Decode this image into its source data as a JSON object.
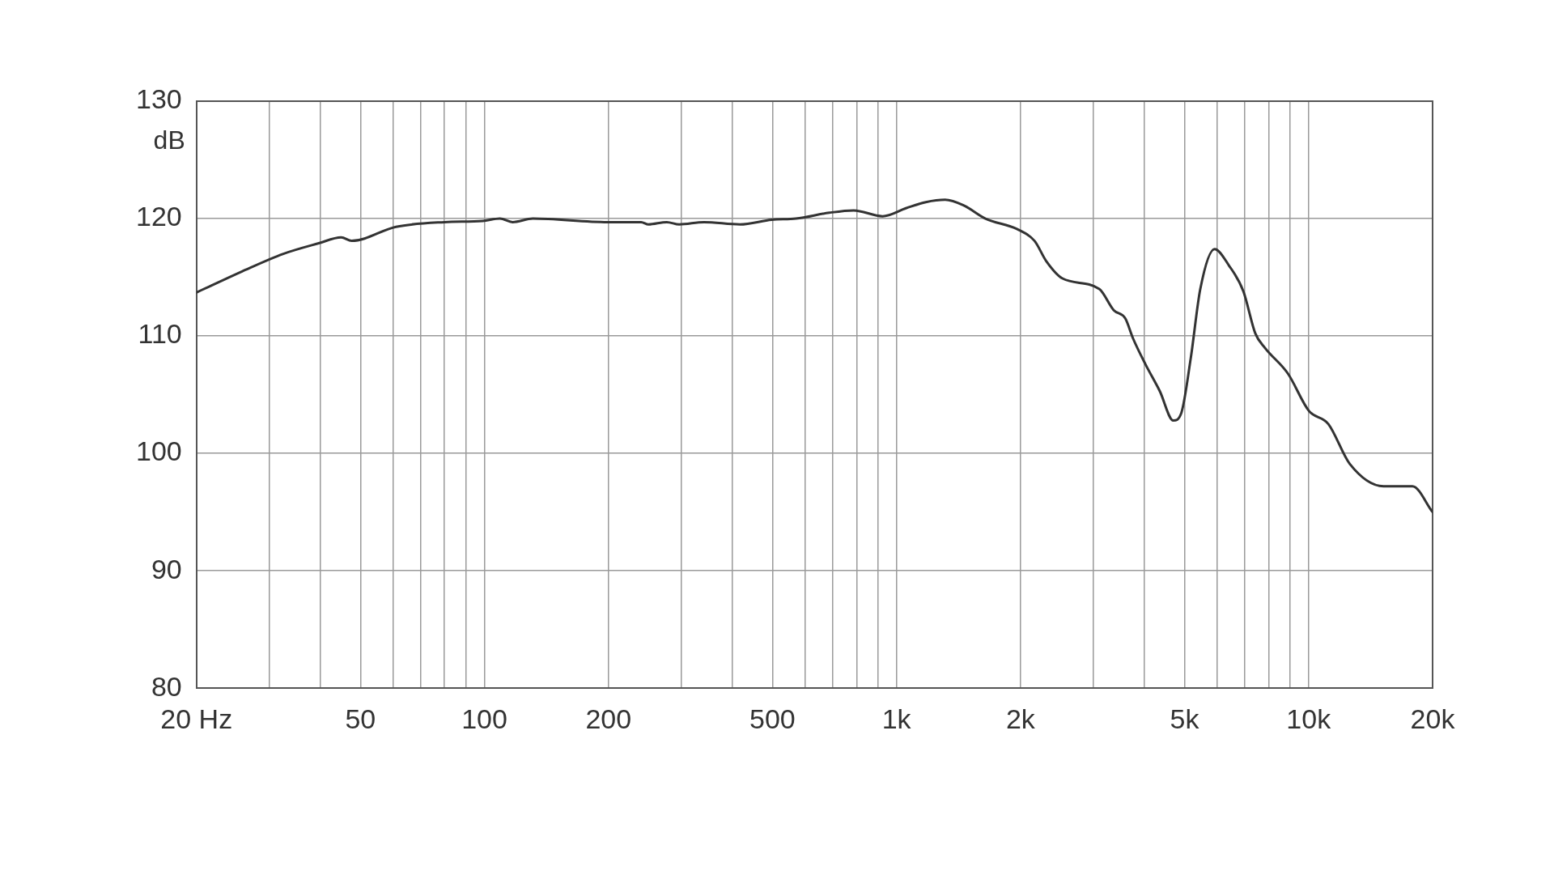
{
  "chart_data": {
    "type": "line",
    "ylabel": "dB",
    "x": [
      20,
      25.8,
      32.5,
      39.6,
      44.9,
      47.6,
      61,
      80,
      99,
      109,
      117,
      131,
      199,
      240,
      250,
      277,
      297,
      341,
      417,
      498,
      570,
      687,
      787,
      925,
      1057,
      1178,
      1312,
      1460,
      1644,
      1964,
      2163,
      2307,
      2529,
      3105,
      3366,
      3590,
      3749,
      4018,
      4355,
      4697,
      4907,
      5177,
      5461,
      5915,
      6410,
      6948,
      7430,
      7832,
      8910,
      10030,
      11170,
      12590,
      15200,
      17860,
      20000
    ],
    "series": [
      {
        "color": "#333333",
        "values": [
          113.7,
          115.5,
          117.0,
          117.9,
          118.4,
          118.1,
          119.3,
          119.7,
          119.8,
          120.0,
          119.7,
          120.0,
          119.7,
          119.7,
          119.5,
          119.7,
          119.5,
          119.7,
          119.5,
          119.9,
          120.0,
          120.5,
          120.7,
          120.2,
          120.9,
          121.4,
          121.6,
          121.1,
          120.0,
          119.1,
          118.1,
          116.4,
          114.9,
          114.0,
          112.2,
          111.5,
          109.8,
          107.6,
          105.3,
          102.8,
          103.4,
          108.1,
          114.0,
          117.4,
          116.0,
          113.8,
          110.2,
          109.0,
          106.8,
          103.6,
          102.5,
          99.1,
          97.2,
          97.2,
          95.0
        ]
      }
    ],
    "log": "x",
    "xlim": [
      20,
      20000
    ],
    "xticks": [
      {
        "value": 20,
        "label": "20 Hz"
      },
      {
        "value": 30,
        "label": null
      },
      {
        "value": 40,
        "label": null
      },
      50,
      {
        "value": 60,
        "label": null
      },
      {
        "value": 70,
        "label": null
      },
      {
        "value": 80,
        "label": null
      },
      {
        "value": 90,
        "label": null
      },
      100,
      200,
      {
        "value": 300,
        "label": null
      },
      {
        "value": 400,
        "label": null
      },
      500,
      {
        "value": 600,
        "label": null
      },
      {
        "value": 700,
        "label": null
      },
      {
        "value": 800,
        "label": null
      },
      {
        "value": 900,
        "label": null
      },
      {
        "value": 1000,
        "label": "1k"
      },
      {
        "value": 2000,
        "label": "2k"
      },
      {
        "value": 3000,
        "label": null
      },
      {
        "value": 4000,
        "label": null
      },
      {
        "value": 5000,
        "label": "5k"
      },
      {
        "value": 6000,
        "label": null
      },
      {
        "value": 7000,
        "label": null
      },
      {
        "value": 8000,
        "label": null
      },
      {
        "value": 9000,
        "label": null
      },
      {
        "value": 10000,
        "label": "10k"
      },
      {
        "value": 20000,
        "label": "20k"
      }
    ],
    "ylim": [
      80,
      130
    ],
    "yticks": [
      80,
      90,
      100,
      110,
      120,
      130
    ],
    "grid": true,
    "legend": false,
    "marker": "none",
    "line_style": "solid"
  }
}
